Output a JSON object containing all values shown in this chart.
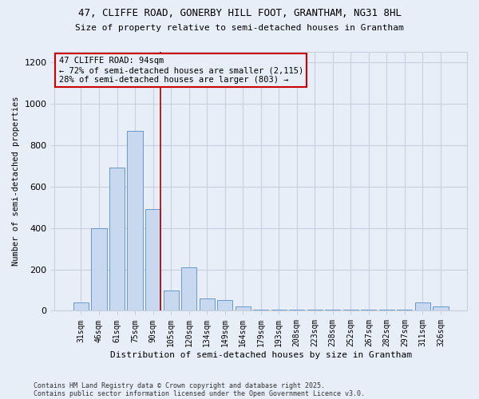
{
  "title1": "47, CLIFFE ROAD, GONERBY HILL FOOT, GRANTHAM, NG31 8HL",
  "title2": "Size of property relative to semi-detached houses in Grantham",
  "xlabel": "Distribution of semi-detached houses by size in Grantham",
  "ylabel": "Number of semi-detached properties",
  "bins": [
    "31sqm",
    "46sqm",
    "61sqm",
    "75sqm",
    "90sqm",
    "105sqm",
    "120sqm",
    "134sqm",
    "149sqm",
    "164sqm",
    "179sqm",
    "193sqm",
    "208sqm",
    "223sqm",
    "238sqm",
    "252sqm",
    "267sqm",
    "282sqm",
    "297sqm",
    "311sqm",
    "326sqm"
  ],
  "values": [
    40,
    400,
    690,
    870,
    490,
    100,
    210,
    60,
    50,
    20,
    5,
    5,
    5,
    5,
    5,
    5,
    5,
    5,
    5,
    40,
    20
  ],
  "bar_color": "#c8d8ee",
  "bar_edge_color": "#6699cc",
  "vline_x_index": 4,
  "vline_color": "#aa0000",
  "annotation_line1": "47 CLIFFE ROAD: 94sqm",
  "annotation_line2": "← 72% of semi-detached houses are smaller (2,115)",
  "annotation_line3": "28% of semi-detached houses are larger (803) →",
  "annotation_box_color": "#cc0000",
  "footer1": "Contains HM Land Registry data © Crown copyright and database right 2025.",
  "footer2": "Contains public sector information licensed under the Open Government Licence v3.0.",
  "bg_color": "#e8eef8",
  "grid_color": "#c8d0e0",
  "ylim": [
    0,
    1250
  ],
  "yticks": [
    0,
    200,
    400,
    600,
    800,
    1000,
    1200
  ]
}
